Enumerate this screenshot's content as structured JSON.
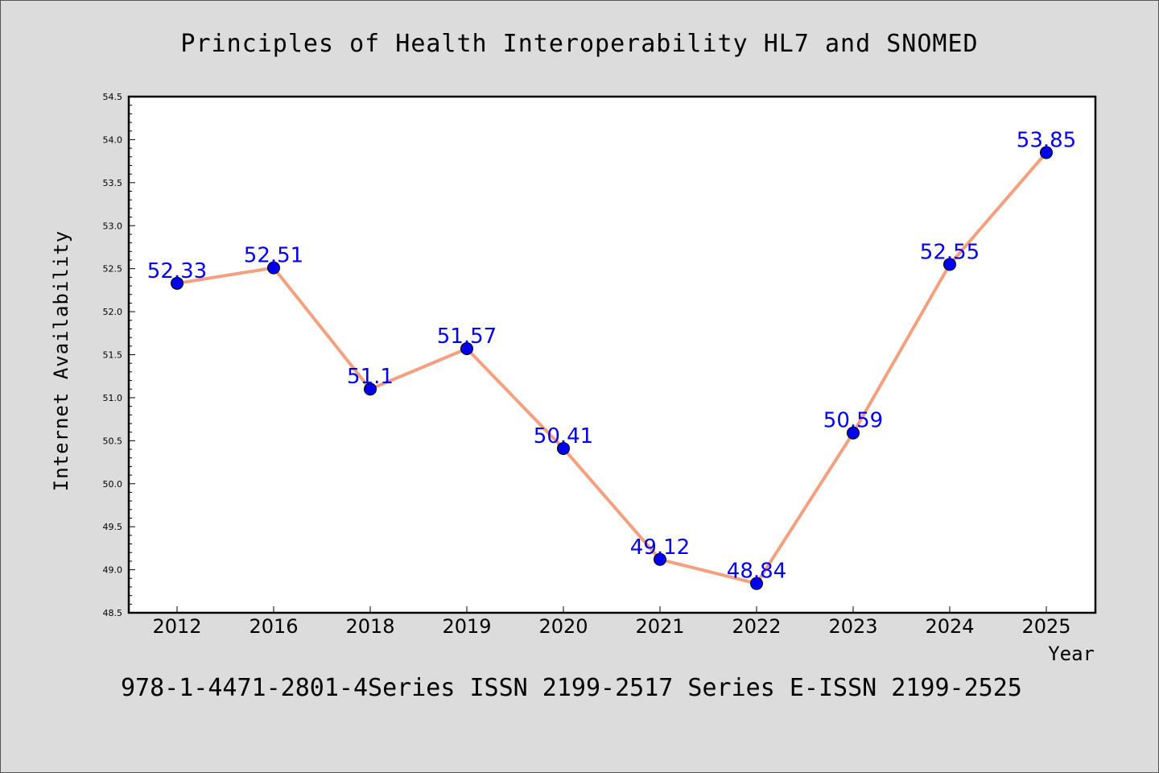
{
  "chart_data": {
    "type": "line",
    "title": "Principles of Health Interoperability HL7 and SNOMED",
    "xlabel": "Year",
    "ylabel": "Internet Availability",
    "categories": [
      "2012",
      "2016",
      "2018",
      "2019",
      "2020",
      "2021",
      "2022",
      "2023",
      "2024",
      "2025"
    ],
    "series": [
      {
        "values": [
          52.33,
          52.51,
          51.1,
          51.57,
          50.41,
          49.12,
          48.84,
          50.59,
          52.55,
          53.85
        ],
        "line_color": "#f4a07f",
        "marker_color": "#0000ee"
      }
    ],
    "data_labels": [
      "52.33",
      "52.51",
      "51.1",
      "51.57",
      "50.41",
      "49.12",
      "48.84",
      "50.59",
      "52.55",
      "53.85"
    ],
    "ylim": [
      48.5,
      54.5
    ],
    "yticks": [
      "48.5",
      "49.0",
      "49.5",
      "50.0",
      "50.5",
      "51.0",
      "51.5",
      "52.0",
      "52.5",
      "53.0",
      "53.5",
      "54.0",
      "54.5"
    ],
    "label_color": "#0000ee",
    "grid": false
  },
  "footer": "978-1-4471-2801-4Series ISSN 2199-2517 Series E-ISSN 2199-2525"
}
